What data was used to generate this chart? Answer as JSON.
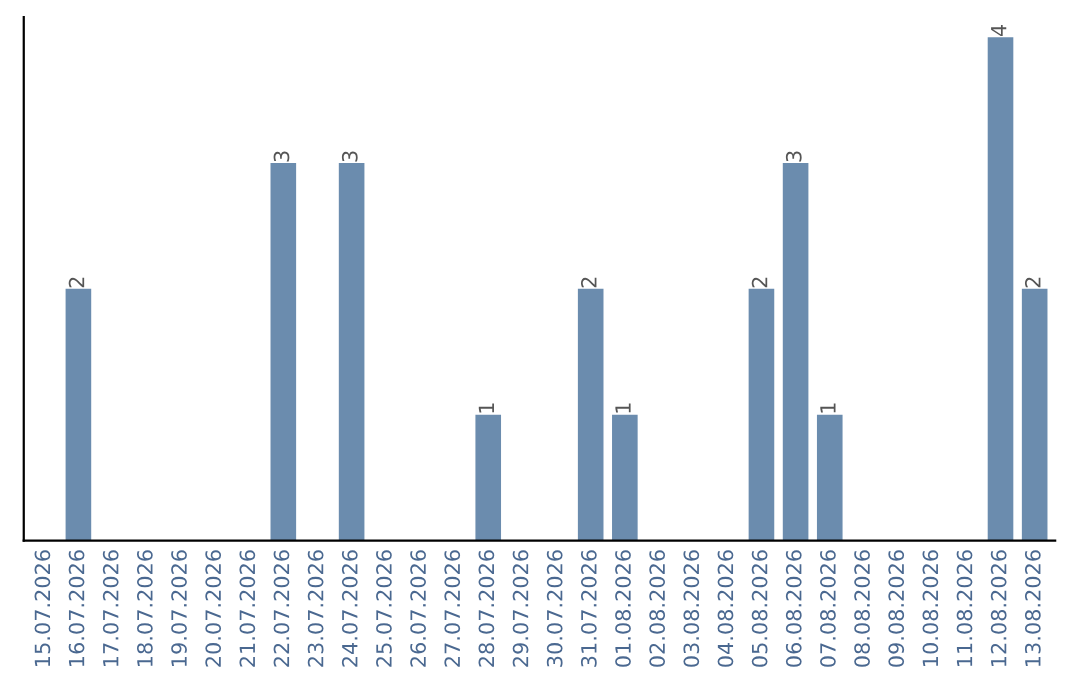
{
  "chart_data": {
    "type": "bar",
    "categories": [
      "15.07.2026",
      "16.07.2026",
      "17.07.2026",
      "18.07.2026",
      "19.07.2026",
      "20.07.2026",
      "21.07.2026",
      "22.07.2026",
      "23.07.2026",
      "24.07.2026",
      "25.07.2026",
      "26.07.2026",
      "27.07.2026",
      "28.07.2026",
      "29.07.2026",
      "30.07.2026",
      "31.07.2026",
      "01.08.2026",
      "02.08.2026",
      "03.08.2026",
      "04.08.2026",
      "05.08.2026",
      "06.08.2026",
      "07.08.2026",
      "08.08.2026",
      "09.08.2026",
      "10.08.2026",
      "11.08.2026",
      "12.08.2026",
      "13.08.2026"
    ],
    "values": [
      0,
      2,
      0,
      0,
      0,
      0,
      0,
      3,
      0,
      3,
      0,
      0,
      0,
      1,
      0,
      0,
      2,
      1,
      0,
      0,
      0,
      2,
      3,
      1,
      0,
      0,
      0,
      0,
      4,
      2
    ],
    "value_labels": [
      null,
      "2",
      null,
      null,
      null,
      null,
      null,
      "3",
      null,
      "3",
      null,
      null,
      null,
      "1",
      null,
      null,
      "2",
      "1",
      null,
      null,
      null,
      "2",
      "3",
      "1",
      null,
      null,
      null,
      null,
      "4",
      "2"
    ],
    "color": "#6b8cae",
    "tick_labels": "x",
    "grid": false,
    "legend": false
  }
}
